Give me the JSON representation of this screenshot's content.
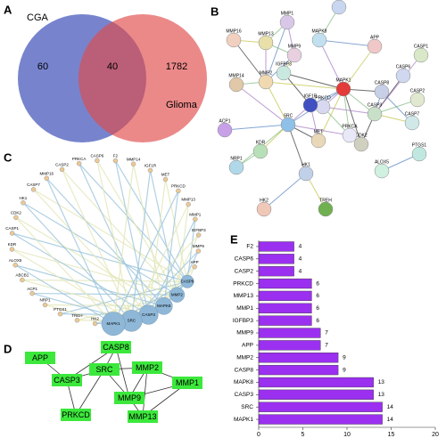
{
  "panel_labels": [
    "A",
    "B",
    "C",
    "D",
    "E"
  ],
  "venn": {
    "left_label": "CGA",
    "right_label": "Glioma",
    "left_only": 60,
    "overlap": 40,
    "right_only": 1782
  },
  "string_network": {
    "nodes": [
      "ABCB1",
      "MMP1",
      "MMP16",
      "MMP13",
      "MAPK8",
      "APP",
      "CASP1",
      "MMP9",
      "IGFBP3",
      "MMP2",
      "MMP14",
      "CASP6",
      "MAPK1",
      "CASP8",
      "CASP2",
      "PRKCD",
      "CASP3",
      "CASP7",
      "IGF1R",
      "ACP1",
      "SRC",
      "KDR",
      "MET",
      "CDK2",
      "PTGS1",
      "NRP1",
      "HK1",
      "PRKCA",
      "ALOX5",
      "HK2",
      "TREH"
    ]
  },
  "circle_network": {
    "nodes": [
      "CASP6",
      "F2",
      "MMP14",
      "IGF1R",
      "MET",
      "PRKCD",
      "MMP13",
      "MMP1",
      "IGFBP3",
      "MMP9",
      "APP",
      "CASP8",
      "MMP2",
      "MAPK8",
      "CASP3",
      "SRC",
      "MAPK1",
      "HK2",
      "TREH",
      "PTGS1",
      "NRP1",
      "ACP1",
      "ABCB1",
      "ALOX5",
      "KDR",
      "CASP1",
      "CDK2",
      "HK1",
      "CASP7",
      "MMP16",
      "CASP2",
      "PRKCA"
    ]
  },
  "core_network": {
    "nodes": [
      "APP",
      "CASP8",
      "CASP3",
      "SRC",
      "MMP2",
      "MMP1",
      "MMP9",
      "PRKCD",
      "MMP13"
    ]
  },
  "chart_data": {
    "type": "bar",
    "orientation": "horizontal",
    "color": "#9b30f0",
    "categories": [
      "F2",
      "CASP6",
      "CASP2",
      "PRKCD",
      "MMP13",
      "MMP1",
      "IGFBP3",
      "MMP9",
      "APP",
      "MMP2",
      "CASP8",
      "MAPK8",
      "CASP3",
      "SRC",
      "MAPK1"
    ],
    "values": [
      4,
      4,
      4,
      6,
      6,
      6,
      6,
      7,
      7,
      9,
      9,
      13,
      13,
      14,
      14
    ],
    "xlim": [
      0,
      20
    ],
    "xticks": [
      0,
      5,
      10,
      15,
      20
    ]
  }
}
